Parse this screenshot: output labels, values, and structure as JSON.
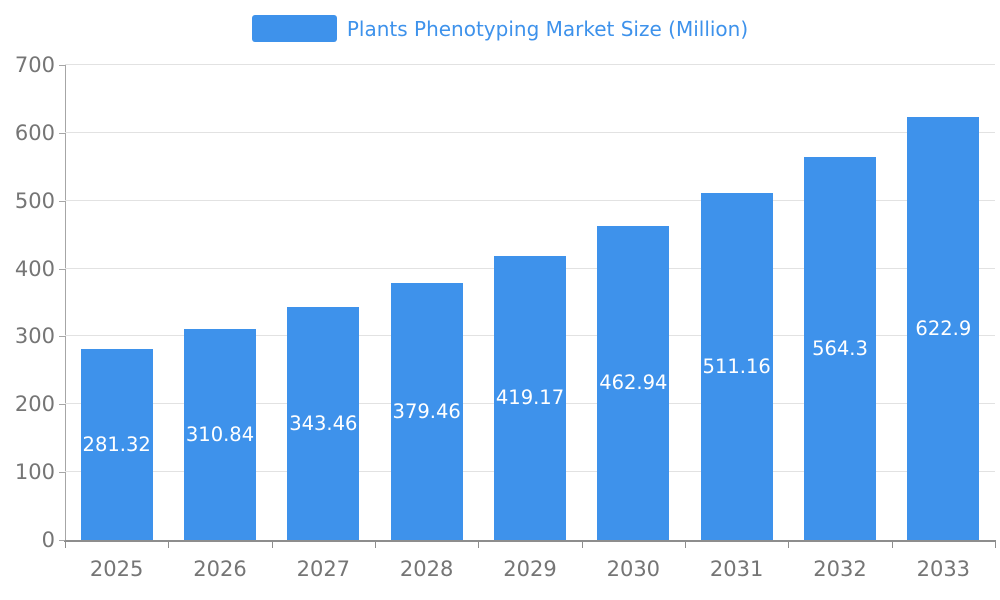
{
  "chart_data": {
    "type": "bar",
    "title": "Plants Phenotyping Market Size (Million)",
    "categories": [
      "2025",
      "2026",
      "2027",
      "2028",
      "2029",
      "2030",
      "2031",
      "2032",
      "2033"
    ],
    "values": [
      281.32,
      310.84,
      343.46,
      379.46,
      419.17,
      462.94,
      511.16,
      564.3,
      622.9
    ],
    "ylim": [
      0,
      700
    ],
    "yticks": [
      0,
      100,
      200,
      300,
      400,
      500,
      600,
      700
    ],
    "grid": true,
    "legend_position": "top-center",
    "bar_value_label_position": "inside-center",
    "colors": {
      "bar": "#3E92EB",
      "title": "#3E92EB",
      "bar_value_label": "#ffffff",
      "tick_label": "#757575",
      "gridline": "#e2e2e2",
      "y_axis_line": "#a6a6a6",
      "x_axis_line": "#8d8d8d",
      "background": "#ffffff"
    }
  }
}
